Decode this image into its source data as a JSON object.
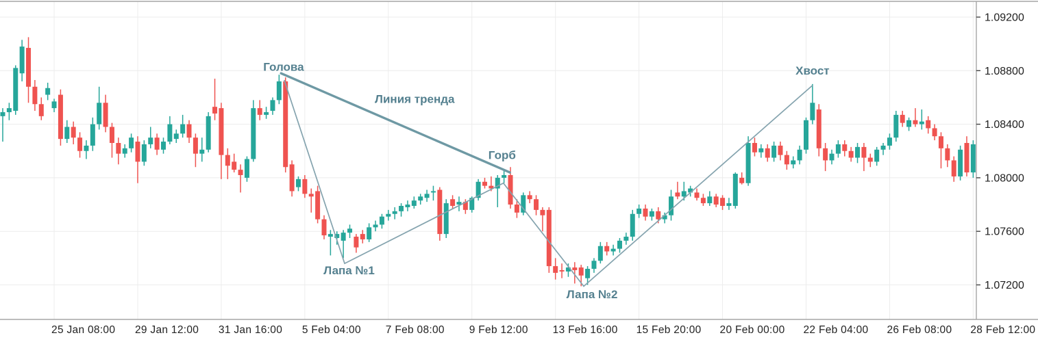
{
  "chart_data": {
    "type": "candlestick",
    "timeframe_hint": "4H",
    "grid": true,
    "legend_position": "none",
    "colors": {
      "up_candle": "#26a69a",
      "down_candle": "#ef5350",
      "grid_line": "#ececec",
      "axis_border": "#a6a6a6",
      "axis_text": "#222222",
      "annotation_text": "#54808f",
      "trend_line": "#6e99a4",
      "zigzag_line": "#84a3ae",
      "background": "#ffffff"
    },
    "y_axis": {
      "side": "right",
      "ticks": [
        "1.09200",
        "1.08800",
        "1.08400",
        "1.08000",
        "1.07600",
        "1.07200"
      ]
    },
    "x_axis": {
      "labels": [
        {
          "text": "25 Jan 08:00",
          "index": 8
        },
        {
          "text": "29 Jan 12:00",
          "index": 21
        },
        {
          "text": "31 Jan 16:00",
          "index": 34
        },
        {
          "text": "5 Feb 04:00",
          "index": 47
        },
        {
          "text": "7 Feb 08:00",
          "index": 60
        },
        {
          "text": "9 Feb 12:00",
          "index": 73
        },
        {
          "text": "13 Feb 16:00",
          "index": 86
        },
        {
          "text": "15 Feb 20:00",
          "index": 99
        },
        {
          "text": "20 Feb 00:00",
          "index": 112
        },
        {
          "text": "22 Feb 04:00",
          "index": 125
        },
        {
          "text": "26 Feb 08:00",
          "index": 138
        },
        {
          "text": "28 Feb 12:00",
          "index": 151
        }
      ]
    },
    "ylim": [
      1.0705,
      1.0932
    ],
    "candles": [
      [
        1.0846,
        1.0852,
        1.0827,
        1.0849
      ],
      [
        1.0849,
        1.0856,
        1.0843,
        1.0852
      ],
      [
        1.085,
        1.0884,
        1.0847,
        1.0882
      ],
      [
        1.0878,
        1.0903,
        1.0872,
        1.0898
      ],
      [
        1.0897,
        1.0905,
        1.0856,
        1.0868
      ],
      [
        1.0868,
        1.0873,
        1.085,
        1.0855
      ],
      [
        1.0855,
        1.086,
        1.0843,
        1.0846
      ],
      [
        1.0862,
        1.0871,
        1.0858,
        1.0867
      ],
      [
        1.0852,
        1.0859,
        1.0849,
        1.0857
      ],
      [
        1.0862,
        1.0866,
        1.0824,
        1.0829
      ],
      [
        1.0829,
        1.0843,
        1.0826,
        1.0838
      ],
      [
        1.0838,
        1.0842,
        1.0825,
        1.083
      ],
      [
        1.083,
        1.0834,
        1.0815,
        1.082
      ],
      [
        1.082,
        1.0828,
        1.0814,
        1.0824
      ],
      [
        1.0824,
        1.0845,
        1.082,
        1.084
      ],
      [
        1.084,
        1.0868,
        1.0836,
        1.0856
      ],
      [
        1.0856,
        1.0862,
        1.0834,
        1.0838
      ],
      [
        1.0838,
        1.0841,
        1.0815,
        1.0826
      ],
      [
        1.0826,
        1.083,
        1.081,
        1.0818
      ],
      [
        1.0818,
        1.0825,
        1.0815,
        1.0822
      ],
      [
        1.0822,
        1.0833,
        1.0819,
        1.083
      ],
      [
        1.0827,
        1.0831,
        1.0796,
        1.0812
      ],
      [
        1.0812,
        1.0828,
        1.0809,
        1.0825
      ],
      [
        1.0825,
        1.0838,
        1.0822,
        1.083
      ],
      [
        1.083,
        1.0833,
        1.0817,
        1.0821
      ],
      [
        1.0821,
        1.083,
        1.0818,
        1.0827
      ],
      [
        1.0827,
        1.0846,
        1.0825,
        1.084
      ],
      [
        1.0829,
        1.0836,
        1.0826,
        1.0833
      ],
      [
        1.0833,
        1.0847,
        1.083,
        1.084
      ],
      [
        1.084,
        1.0843,
        1.0826,
        1.083
      ],
      [
        1.083,
        1.0833,
        1.0808,
        1.0818
      ],
      [
        1.0818,
        1.083,
        1.0812,
        1.0821
      ],
      [
        1.0821,
        1.0849,
        1.0819,
        1.0846
      ],
      [
        1.0853,
        1.0874,
        1.0843,
        1.0848
      ],
      [
        1.0852,
        1.0856,
        1.0799,
        1.0817
      ],
      [
        1.0817,
        1.0822,
        1.0799,
        1.0809
      ],
      [
        1.0812,
        1.0818,
        1.0804,
        1.0806
      ],
      [
        1.0806,
        1.081,
        1.0789,
        1.0802
      ],
      [
        1.08,
        1.0816,
        1.0797,
        1.0814
      ],
      [
        1.0814,
        1.0858,
        1.0812,
        1.0852
      ],
      [
        1.0852,
        1.0858,
        1.0843,
        1.0847
      ],
      [
        1.0847,
        1.0853,
        1.0844,
        1.0849
      ],
      [
        1.085,
        1.086,
        1.0847,
        1.0858
      ],
      [
        1.0858,
        1.0877,
        1.0855,
        1.0872
      ],
      [
        1.0872,
        1.0875,
        1.0804,
        1.0808
      ],
      [
        1.081,
        1.0813,
        1.0786,
        1.079
      ],
      [
        1.0793,
        1.0801,
        1.079,
        1.0799
      ],
      [
        1.0799,
        1.0802,
        1.0785,
        1.0788
      ],
      [
        1.0788,
        1.0792,
        1.0774,
        1.0786
      ],
      [
        1.079,
        1.0794,
        1.0766,
        1.0769
      ],
      [
        1.0769,
        1.0772,
        1.0754,
        1.0757
      ],
      [
        1.0756,
        1.0761,
        1.0742,
        1.0758
      ],
      [
        1.0755,
        1.076,
        1.075,
        1.0758
      ],
      [
        1.0753,
        1.0761,
        1.074,
        1.0759
      ],
      [
        1.0759,
        1.0765,
        1.0755,
        1.0762
      ],
      [
        1.0756,
        1.0758,
        1.0744,
        1.0748
      ],
      [
        1.0758,
        1.0761,
        1.0751,
        1.0754
      ],
      [
        1.0754,
        1.0766,
        1.0752,
        1.0763
      ],
      [
        1.0763,
        1.0768,
        1.076,
        1.0765
      ],
      [
        1.0765,
        1.0773,
        1.0762,
        1.0771
      ],
      [
        1.0771,
        1.0776,
        1.0768,
        1.0773
      ],
      [
        1.0773,
        1.0778,
        1.0769,
        1.0775
      ],
      [
        1.0775,
        1.0781,
        1.0771,
        1.0779
      ],
      [
        1.0778,
        1.0783,
        1.0775,
        1.078
      ],
      [
        1.0779,
        1.0786,
        1.0777,
        1.0783
      ],
      [
        1.0783,
        1.0788,
        1.078,
        1.0786
      ],
      [
        1.0785,
        1.0791,
        1.0782,
        1.0788
      ],
      [
        1.0789,
        1.0794,
        1.0783,
        1.079
      ],
      [
        1.0791,
        1.0793,
        1.0753,
        1.0758
      ],
      [
        1.0758,
        1.0784,
        1.0755,
        1.0781
      ],
      [
        1.0784,
        1.0787,
        1.0777,
        1.0779
      ],
      [
        1.078,
        1.0786,
        1.0775,
        1.0782
      ],
      [
        1.0782,
        1.0784,
        1.0773,
        1.0776
      ],
      [
        1.0776,
        1.0786,
        1.0774,
        1.0785
      ],
      [
        1.0785,
        1.0799,
        1.0783,
        1.0797
      ],
      [
        1.0797,
        1.08,
        1.0792,
        1.0794
      ],
      [
        1.0794,
        1.0801,
        1.079,
        1.0792
      ],
      [
        1.0792,
        1.0802,
        1.0778,
        1.08
      ],
      [
        1.08,
        1.0806,
        1.0796,
        1.0802
      ],
      [
        1.0802,
        1.0808,
        1.0777,
        1.078
      ],
      [
        1.078,
        1.0784,
        1.077,
        1.0774
      ],
      [
        1.0774,
        1.0789,
        1.0772,
        1.0787
      ],
      [
        1.0787,
        1.079,
        1.0781,
        1.0784
      ],
      [
        1.0784,
        1.0787,
        1.0772,
        1.0776
      ],
      [
        1.0776,
        1.0778,
        1.076,
        1.0772
      ],
      [
        1.0776,
        1.0778,
        1.0729,
        1.0734
      ],
      [
        1.0734,
        1.074,
        1.0724,
        1.0729
      ],
      [
        1.0731,
        1.0736,
        1.0725,
        1.073
      ],
      [
        1.073,
        1.0736,
        1.0726,
        1.0733
      ],
      [
        1.0733,
        1.0737,
        1.0721,
        1.0731
      ],
      [
        1.0733,
        1.0735,
        1.0719,
        1.0727
      ],
      [
        1.0725,
        1.0734,
        1.072,
        1.0732
      ],
      [
        1.0732,
        1.074,
        1.0729,
        1.0738
      ],
      [
        1.0738,
        1.0752,
        1.0736,
        1.0749
      ],
      [
        1.0749,
        1.0752,
        1.0742,
        1.0745
      ],
      [
        1.0745,
        1.075,
        1.0742,
        1.0747
      ],
      [
        1.0747,
        1.0755,
        1.0744,
        1.0753
      ],
      [
        1.0753,
        1.0759,
        1.075,
        1.0756
      ],
      [
        1.0756,
        1.0776,
        1.0753,
        1.0773
      ],
      [
        1.0773,
        1.078,
        1.077,
        1.0777
      ],
      [
        1.0777,
        1.078,
        1.0768,
        1.0771
      ],
      [
        1.0771,
        1.0777,
        1.0768,
        1.0775
      ],
      [
        1.0775,
        1.0778,
        1.0766,
        1.0769
      ],
      [
        1.0769,
        1.0774,
        1.0766,
        1.0772
      ],
      [
        1.0772,
        1.0791,
        1.0768,
        1.0786
      ],
      [
        1.0789,
        1.0797,
        1.0784,
        1.0786
      ],
      [
        1.0786,
        1.0797,
        1.0783,
        1.079
      ],
      [
        1.0789,
        1.0794,
        1.0786,
        1.0792
      ],
      [
        1.0789,
        1.0792,
        1.0783,
        1.0785
      ],
      [
        1.0785,
        1.0788,
        1.0779,
        1.0781
      ],
      [
        1.0781,
        1.079,
        1.0779,
        1.0786
      ],
      [
        1.0786,
        1.0788,
        1.0778,
        1.078
      ],
      [
        1.0785,
        1.0787,
        1.0776,
        1.0779
      ],
      [
        1.0779,
        1.0785,
        1.0776,
        1.0781
      ],
      [
        1.0779,
        1.0804,
        1.0777,
        1.0803
      ],
      [
        1.08,
        1.0804,
        1.0795,
        1.0796
      ],
      [
        1.0796,
        1.0831,
        1.0794,
        1.0826
      ],
      [
        1.0826,
        1.083,
        1.0816,
        1.0819
      ],
      [
        1.0819,
        1.0825,
        1.0815,
        1.0822
      ],
      [
        1.0822,
        1.0825,
        1.0812,
        1.0815
      ],
      [
        1.0815,
        1.0827,
        1.0812,
        1.0824
      ],
      [
        1.0824,
        1.0827,
        1.0813,
        1.0817
      ],
      [
        1.0817,
        1.082,
        1.0806,
        1.081
      ],
      [
        1.081,
        1.0816,
        1.0807,
        1.0813
      ],
      [
        1.0813,
        1.0824,
        1.081,
        1.0821
      ],
      [
        1.0821,
        1.0845,
        1.0818,
        1.0843
      ],
      [
        1.0843,
        1.087,
        1.084,
        1.0856
      ],
      [
        1.0851,
        1.0855,
        1.0816,
        1.0822
      ],
      [
        1.0822,
        1.0826,
        1.0805,
        1.0813
      ],
      [
        1.0813,
        1.0821,
        1.081,
        1.0818
      ],
      [
        1.0818,
        1.0828,
        1.0815,
        1.0825
      ],
      [
        1.0825,
        1.0828,
        1.0816,
        1.082
      ],
      [
        1.082,
        1.0823,
        1.0812,
        1.0815
      ],
      [
        1.0815,
        1.0826,
        1.0811,
        1.0823
      ],
      [
        1.0823,
        1.0826,
        1.0805,
        1.0815
      ],
      [
        1.0815,
        1.0818,
        1.0808,
        1.0812
      ],
      [
        1.0812,
        1.0823,
        1.0809,
        1.0821
      ],
      [
        1.0821,
        1.0826,
        1.0817,
        1.0824
      ],
      [
        1.0824,
        1.0833,
        1.0821,
        1.083
      ],
      [
        1.083,
        1.085,
        1.0827,
        1.0847
      ],
      [
        1.0847,
        1.085,
        1.0838,
        1.0841
      ],
      [
        1.0838,
        1.0845,
        1.0835,
        1.0843
      ],
      [
        1.0843,
        1.0852,
        1.0838,
        1.084
      ],
      [
        1.084,
        1.0851,
        1.0836,
        1.0842
      ],
      [
        1.0843,
        1.0846,
        1.0833,
        1.0837
      ],
      [
        1.0837,
        1.084,
        1.0828,
        1.0831
      ],
      [
        1.0831,
        1.0834,
        1.0807,
        1.0822
      ],
      [
        1.0822,
        1.0825,
        1.0808,
        1.0813
      ],
      [
        1.0813,
        1.0816,
        1.0797,
        1.0801
      ],
      [
        1.0801,
        1.0824,
        1.0798,
        1.0821
      ],
      [
        1.0826,
        1.0831,
        1.0801,
        1.0804
      ],
      [
        1.0804,
        1.0828,
        1.08,
        1.0825
      ]
    ],
    "pattern_lines": {
      "trend_line": {
        "points": [
          {
            "index": 43.3,
            "price": 1.0878
          },
          {
            "index": 78.9,
            "price": 1.0804
          }
        ]
      },
      "zigzag": {
        "points": [
          {
            "index": 43.8,
            "price": 1.0873
          },
          {
            "index": 53.2,
            "price": 1.0736
          },
          {
            "index": 77.9,
            "price": 1.0796
          },
          {
            "index": 90.4,
            "price": 1.0719
          },
          {
            "index": 126.0,
            "price": 1.0869
          }
        ]
      }
    },
    "annotations": [
      {
        "id": "golova",
        "text": "Голова",
        "index": 43.7,
        "price": 1.088
      },
      {
        "id": "liniya-trenda",
        "text": "Линия тренда",
        "index": 64.1,
        "price": 1.0856
      },
      {
        "id": "gorb",
        "text": "Горб",
        "index": 77.7,
        "price": 1.0814
      },
      {
        "id": "lapa-1",
        "text": "Лапа №1",
        "index": 53.9,
        "price": 1.0728
      },
      {
        "id": "lapa-2",
        "text": "Лапа №2",
        "index": 91.7,
        "price": 1.071
      },
      {
        "id": "khvost",
        "text": "Хвост",
        "index": 126.0,
        "price": 1.0877
      }
    ]
  }
}
